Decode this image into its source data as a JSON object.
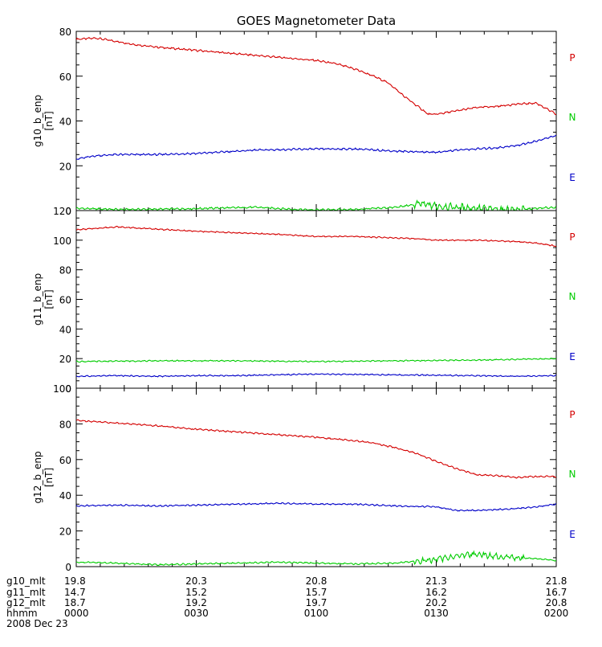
{
  "chart_data": {
    "type": "line",
    "title": "GOES Magnetometer Data",
    "date_label": "2008 Dec 23",
    "x_axis": {
      "ticks": [
        {
          "row_label": "g10_mlt",
          "values": [
            "19.8",
            "20.3",
            "20.8",
            "21.3",
            "21.8"
          ]
        },
        {
          "row_label": "g11_mlt",
          "values": [
            "14.7",
            "15.2",
            "15.7",
            "16.2",
            "16.7"
          ]
        },
        {
          "row_label": "g12_mlt",
          "values": [
            "18.7",
            "19.2",
            "19.7",
            "20.2",
            "20.8"
          ]
        },
        {
          "row_label": "hhmm",
          "values": [
            "0000",
            "0030",
            "0100",
            "0130",
            "0200"
          ]
        }
      ],
      "time_minutes": [
        0,
        30,
        60,
        90,
        120
      ]
    },
    "series_colors": {
      "P": "#d40000",
      "N": "#00cc00",
      "E": "#0000c8"
    },
    "panels": [
      {
        "ylabel": "g10_b_enp",
        "unit": "[nT]",
        "ylim": [
          0,
          80
        ],
        "yticks": [
          0,
          20,
          40,
          60,
          80
        ],
        "legend": [
          "P",
          "N",
          "E"
        ],
        "series": [
          {
            "name": "P",
            "x": [
              0,
              5,
              10,
              15,
              20,
              30,
              40,
              50,
              60,
              65,
              70,
              75,
              78,
              80,
              82,
              85,
              88,
              90,
              95,
              100,
              105,
              110,
              115,
              118,
              120
            ],
            "y": [
              76.5,
              77,
              75.5,
              74,
              73,
              71.5,
              70,
              68.5,
              67,
              65.5,
              63,
              59.5,
              57,
              54,
              51,
              47,
              43,
              43,
              44.5,
              46,
              46.5,
              47.5,
              48,
              45,
              43
            ]
          },
          {
            "name": "N",
            "x": [
              0,
              10,
              20,
              30,
              45,
              55,
              60,
              70,
              80,
              84,
              86,
              88,
              90,
              95,
              100,
              105,
              110,
              120
            ],
            "y": [
              1,
              0.5,
              0.6,
              0.9,
              1.5,
              0.5,
              0.3,
              0.5,
              1.5,
              2.5,
              3,
              2.5,
              2,
              1.5,
              1,
              0.5,
              0.4,
              1.5
            ]
          },
          {
            "name": "E",
            "x": [
              0,
              5,
              10,
              20,
              30,
              45,
              60,
              70,
              80,
              90,
              95,
              100,
              105,
              110,
              115,
              120
            ],
            "y": [
              23,
              24.5,
              25,
              25,
              25.5,
              27,
              27.5,
              27.5,
              26.5,
              26,
              27,
              27.5,
              28,
              29,
              31,
              33.5
            ]
          }
        ]
      },
      {
        "ylabel": "g11_b_enp",
        "unit": "[nT]",
        "ylim": [
          0,
          120
        ],
        "yticks": [
          0,
          20,
          40,
          60,
          80,
          100,
          120
        ],
        "legend": [
          "P",
          "N",
          "E"
        ],
        "series": [
          {
            "name": "P",
            "x": [
              0,
              10,
              20,
              30,
              40,
              50,
              60,
              70,
              80,
              85,
              90,
              100,
              110,
              115,
              120
            ],
            "y": [
              107,
              109,
              107.5,
              106,
              105,
              104,
              102.5,
              102.5,
              101.5,
              101,
              100,
              100,
              99,
              98,
              96
            ]
          },
          {
            "name": "N",
            "x": [
              0,
              20,
              40,
              60,
              80,
              100,
              110,
              120
            ],
            "y": [
              18,
              18.5,
              18.5,
              18,
              18.5,
              19,
              19.5,
              20
            ]
          },
          {
            "name": "E",
            "x": [
              0,
              10,
              20,
              30,
              40,
              60,
              80,
              100,
              110,
              120
            ],
            "y": [
              8,
              8.5,
              8,
              8.5,
              8.5,
              9.5,
              9,
              8.5,
              8,
              8.5
            ]
          }
        ]
      },
      {
        "ylabel": "g12_b_enp",
        "unit": "[nT]",
        "ylim": [
          0,
          100
        ],
        "yticks": [
          0,
          20,
          40,
          60,
          80,
          100
        ],
        "legend": [
          "P",
          "N",
          "E"
        ],
        "series": [
          {
            "name": "P",
            "x": [
              0,
              10,
              20,
              30,
              40,
              50,
              60,
              70,
              75,
              80,
              85,
              90,
              95,
              100,
              105,
              110,
              115,
              120
            ],
            "y": [
              82,
              80.5,
              79,
              77,
              75.5,
              74,
              72.5,
              70.5,
              69,
              66.5,
              63.5,
              59,
              55,
              51.5,
              51,
              50,
              50.5,
              50.5
            ]
          },
          {
            "name": "N",
            "x": [
              0,
              10,
              20,
              30,
              40,
              50,
              60,
              70,
              80,
              90,
              95,
              100,
              105,
              110,
              115,
              120
            ],
            "y": [
              2.5,
              2,
              1,
              1.5,
              2,
              2.5,
              2,
              1.5,
              2,
              4,
              6,
              7,
              6,
              5,
              4.5,
              3.5
            ]
          },
          {
            "name": "E",
            "x": [
              0,
              10,
              20,
              30,
              40,
              50,
              60,
              70,
              80,
              90,
              95,
              100,
              105,
              110,
              115,
              120
            ],
            "y": [
              34,
              34.5,
              34,
              34.5,
              35,
              35.5,
              35,
              35,
              34,
              33.5,
              31.5,
              31.5,
              32,
              32.5,
              33.5,
              35
            ]
          }
        ]
      }
    ]
  }
}
